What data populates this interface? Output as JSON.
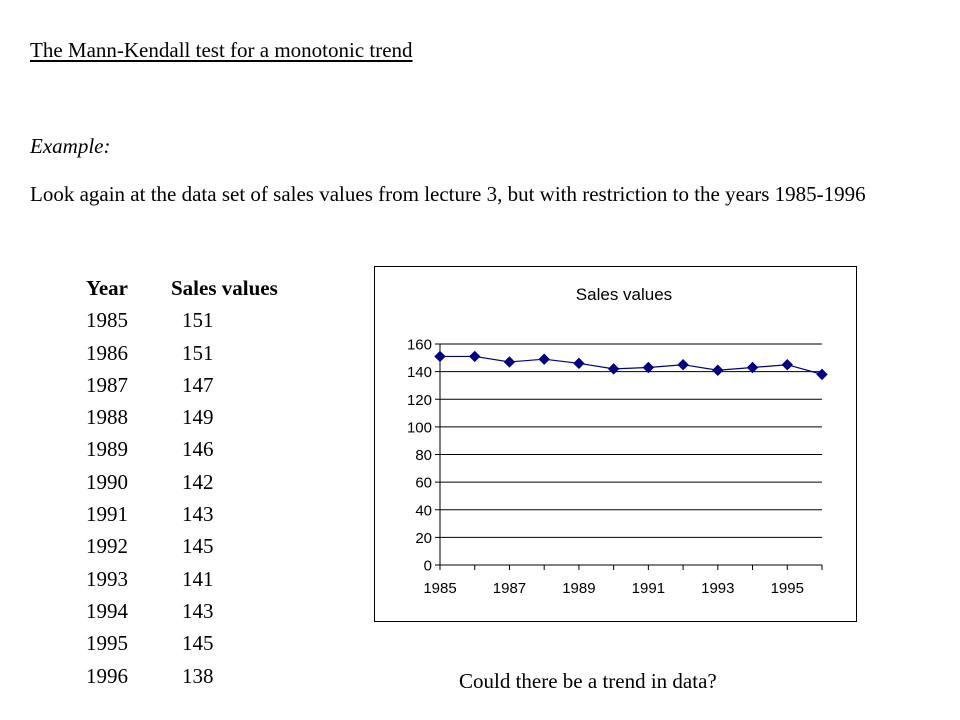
{
  "slide": {
    "title": "The Mann-Kendall test for a monotonic trend",
    "example_label": "Example:",
    "paragraph": "Look again at the data set of sales values from lecture 3, but with restriction to the years 1985-1996",
    "question": "Could there be a trend in data?"
  },
  "table": {
    "headers": [
      "Year",
      "Sales values"
    ],
    "rows": [
      [
        "1985",
        "151"
      ],
      [
        "1986",
        "151"
      ],
      [
        "1987",
        "147"
      ],
      [
        "1988",
        "149"
      ],
      [
        "1989",
        "146"
      ],
      [
        "1990",
        "142"
      ],
      [
        "1991",
        "143"
      ],
      [
        "1992",
        "145"
      ],
      [
        "1993",
        "141"
      ],
      [
        "1994",
        "143"
      ],
      [
        "1995",
        "145"
      ],
      [
        "1996",
        "138"
      ]
    ]
  },
  "chart_data": {
    "type": "line",
    "title": "Sales values",
    "x": [
      1985,
      1986,
      1987,
      1988,
      1989,
      1990,
      1991,
      1992,
      1993,
      1994,
      1995,
      1996
    ],
    "x_tick_labels": [
      "1985",
      "1987",
      "1989",
      "1991",
      "1993",
      "1995"
    ],
    "series": [
      {
        "values": [
          151,
          151,
          147,
          149,
          146,
          142,
          143,
          145,
          141,
          143,
          145,
          138
        ]
      }
    ],
    "ylim": [
      0,
      160
    ],
    "y_ticks": [
      0,
      20,
      40,
      60,
      80,
      100,
      120,
      140,
      160
    ],
    "grid": "horizontal",
    "legend": "none",
    "marker": "diamond",
    "colors": {
      "line": "#000080",
      "marker": "#000080",
      "grid": "#000000"
    }
  }
}
